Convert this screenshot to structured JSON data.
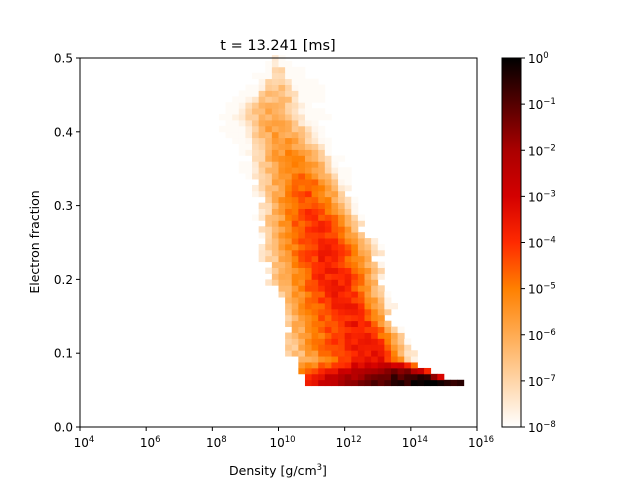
{
  "chart_data": {
    "type": "heatmap",
    "title": "t = 13.241 [ms]",
    "xlabel": "Density [g/cm",
    "xlabel_sup": "3",
    "xlabel_end": "]",
    "ylabel": "Electron fraction",
    "x_scale": "log",
    "xlim_log10": [
      4,
      16
    ],
    "ylim": [
      0,
      0.5
    ],
    "x_ticks_log10": [
      4,
      6,
      8,
      10,
      12,
      14,
      16
    ],
    "x_tick_base": "10",
    "y_ticks": [
      0.0,
      0.1,
      0.2,
      0.3,
      0.4,
      0.5
    ],
    "y_tick_labels": [
      "0.0",
      "0.1",
      "0.2",
      "0.3",
      "0.4",
      "0.5"
    ],
    "colorbar": {
      "scale": "log",
      "range_log10": [
        -8,
        0
      ],
      "ticks_log10": [
        -8,
        -7,
        -6,
        -5,
        -4,
        -3,
        -2,
        -1,
        0
      ],
      "tick_base": "10",
      "colormap": "gist_heat_r",
      "colors": [
        "#ffffff",
        "#ffd5a8",
        "#ffab52",
        "#ff8000",
        "#ff2a00",
        "#d40000",
        "#aa0000",
        "#550000",
        "#000000"
      ]
    },
    "bin_width_log10": 0.2,
    "bin_height": 0.008,
    "bands": [
      {
        "y": 0.06,
        "x_min": 11.1,
        "x_max": 15.2,
        "x_peak": 14.8
      },
      {
        "y": 0.07,
        "x_min": 10.9,
        "x_max": 15.0,
        "x_peak": 14.2
      },
      {
        "y": 0.09,
        "x_min": 10.6,
        "x_max": 13.9,
        "x_peak": 13.0
      },
      {
        "y": 0.12,
        "x_min": 10.3,
        "x_max": 13.7,
        "x_peak": 12.6
      },
      {
        "y": 0.15,
        "x_min": 10.2,
        "x_max": 13.3,
        "x_peak": 12.3
      },
      {
        "y": 0.18,
        "x_min": 10.0,
        "x_max": 13.1,
        "x_peak": 11.9
      },
      {
        "y": 0.21,
        "x_min": 9.8,
        "x_max": 13.0,
        "x_peak": 11.7
      },
      {
        "y": 0.24,
        "x_min": 9.7,
        "x_max": 12.9,
        "x_peak": 11.4
      },
      {
        "y": 0.27,
        "x_min": 9.6,
        "x_max": 12.5,
        "x_peak": 11.2
      },
      {
        "y": 0.3,
        "x_min": 9.5,
        "x_max": 12.2,
        "x_peak": 11.0
      },
      {
        "y": 0.33,
        "x_min": 9.3,
        "x_max": 12.0,
        "x_peak": 10.8
      },
      {
        "y": 0.36,
        "x_min": 9.1,
        "x_max": 11.8,
        "x_peak": 10.5
      },
      {
        "y": 0.39,
        "x_min": 8.7,
        "x_max": 11.5,
        "x_peak": 10.1
      },
      {
        "y": 0.42,
        "x_min": 8.3,
        "x_max": 11.3,
        "x_peak": 9.8
      },
      {
        "y": 0.45,
        "x_min": 8.8,
        "x_max": 11.2,
        "x_peak": 9.9
      },
      {
        "y": 0.48,
        "x_min": 9.5,
        "x_max": 10.6,
        "x_peak": 10.0
      },
      {
        "y": 0.5,
        "x_min": 9.7,
        "x_max": 10.1,
        "x_peak": 9.9
      }
    ],
    "peak_log10_density": [
      {
        "y": 0.06,
        "value": 0.0
      },
      {
        "y": 0.07,
        "value": -0.7
      },
      {
        "y": 0.09,
        "value": -3.4
      },
      {
        "y": 0.15,
        "value": -3.7
      },
      {
        "y": 0.21,
        "value": -3.7
      },
      {
        "y": 0.27,
        "value": -3.9
      },
      {
        "y": 0.33,
        "value": -4.6
      },
      {
        "y": 0.39,
        "value": -5.6
      },
      {
        "y": 0.45,
        "value": -6.3
      },
      {
        "y": 0.5,
        "value": -7.2
      }
    ]
  }
}
